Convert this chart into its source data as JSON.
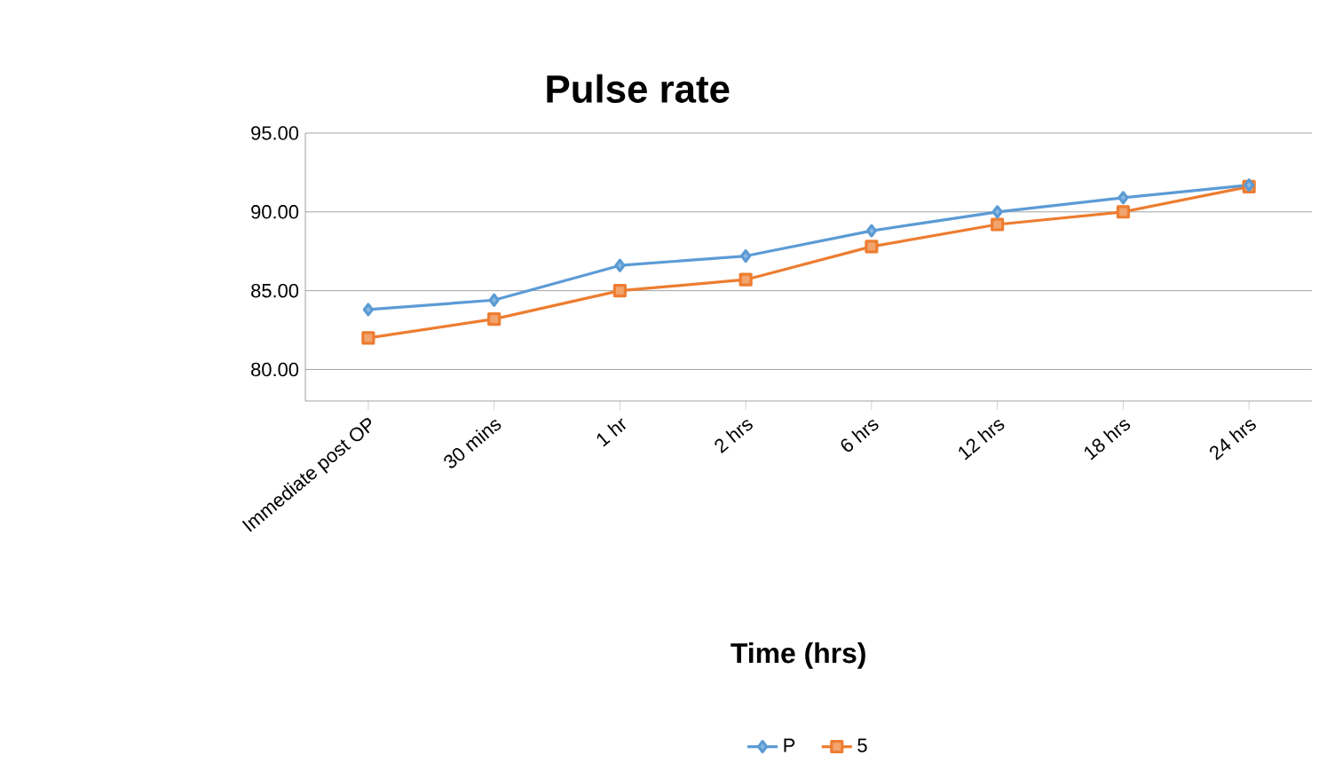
{
  "chart_data": {
    "type": "line",
    "title": "Pulse rate",
    "xlabel": "Time (hrs)",
    "categories": [
      "Immediate post OP",
      "30 mins",
      "1 hr",
      "2 hrs",
      "6 hrs",
      "12 hrs",
      "18 hrs",
      "24 hrs"
    ],
    "series": [
      {
        "name": "P",
        "color": "#5b9bd5",
        "marker": "diamond",
        "values": [
          83.8,
          84.4,
          86.6,
          87.2,
          88.8,
          90.0,
          90.9,
          91.7
        ]
      },
      {
        "name": "5",
        "color": "#ed7d31",
        "marker": "square",
        "values": [
          82.0,
          83.2,
          85.0,
          85.7,
          87.8,
          89.2,
          90.0,
          91.6
        ]
      }
    ],
    "ylim": [
      78,
      95
    ],
    "yticks": [
      {
        "value": 80,
        "label": "80.00"
      },
      {
        "value": 85,
        "label": "85.00"
      },
      {
        "value": 90,
        "label": "90.00"
      },
      {
        "value": 95,
        "label": "95.00"
      }
    ],
    "grid": "y",
    "legend": "bottom",
    "line_style": "solid"
  }
}
